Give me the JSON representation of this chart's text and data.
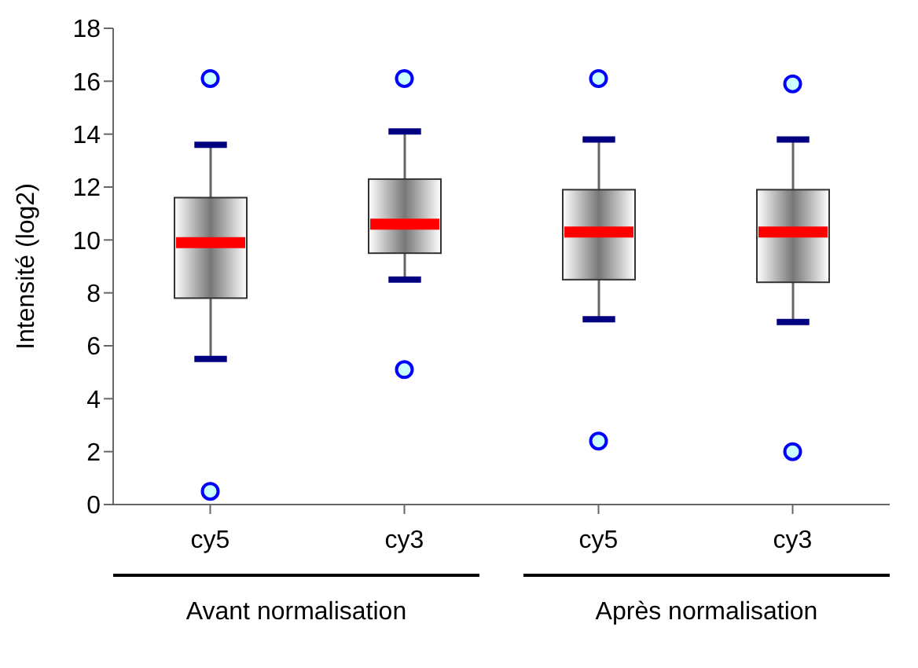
{
  "chart_data": {
    "type": "box",
    "ylabel": "Intensité (log2)",
    "categories": [
      "cy5",
      "cy3",
      "cy5",
      "cy3"
    ],
    "boxes": [
      {
        "low": 5.5,
        "q1": 7.8,
        "median": 9.9,
        "q3": 11.6,
        "high": 13.6,
        "outliers": [
          16.1,
          0.5
        ]
      },
      {
        "low": 8.5,
        "q1": 9.5,
        "median": 10.6,
        "q3": 12.3,
        "high": 14.1,
        "outliers": [
          16.1,
          5.1
        ]
      },
      {
        "low": 7.0,
        "q1": 8.5,
        "median": 10.3,
        "q3": 11.9,
        "high": 13.8,
        "outliers": [
          16.1,
          2.4
        ]
      },
      {
        "low": 6.9,
        "q1": 8.4,
        "median": 10.3,
        "q3": 11.9,
        "high": 13.8,
        "outliers": [
          15.9,
          2.0
        ]
      }
    ],
    "ylim": [
      0,
      18
    ],
    "yticks": [
      0,
      2,
      4,
      6,
      8,
      10,
      12,
      14,
      16,
      18
    ],
    "grid": false,
    "legend": false,
    "annotations": [
      "Avant normalisation",
      "Après normalisation"
    ]
  }
}
